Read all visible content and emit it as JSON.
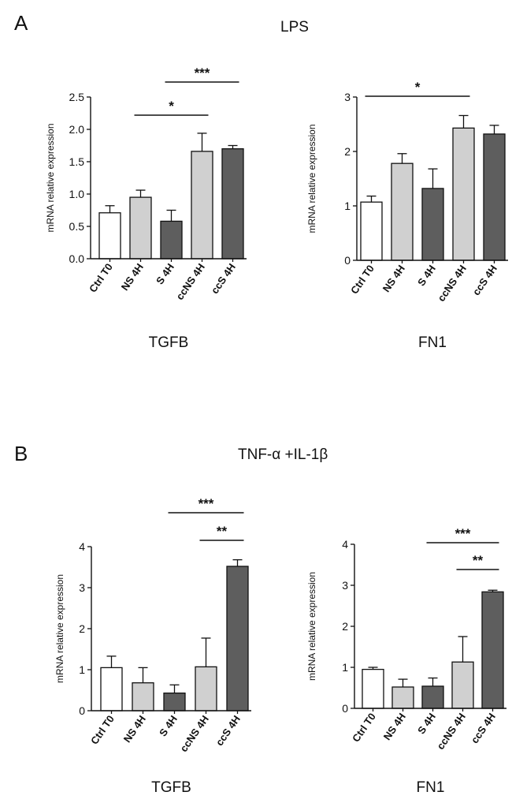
{
  "panels": [
    {
      "letter": "A",
      "title": "LPS"
    },
    {
      "letter": "B",
      "title": "TNF-α +IL-1β"
    }
  ],
  "colors": {
    "Ctrl T0": "#ffffff",
    "NS 4H": "#d0d0d0",
    "S 4H": "#5e5e5e",
    "ccNS 4H": "#d0d0d0",
    "ccS 4H": "#5e5e5e"
  },
  "chart_data": [
    {
      "type": "bar",
      "title": "TGFB",
      "ylabel": "mRNA relative expression",
      "categories": [
        "Ctrl T0",
        "NS 4H",
        "S 4H",
        "ccNS 4H",
        "ccS 4H"
      ],
      "values": [
        0.71,
        0.95,
        0.58,
        1.66,
        1.7
      ],
      "errors": [
        0.11,
        0.11,
        0.17,
        0.28,
        0.05
      ],
      "ylim": [
        0,
        2.5
      ],
      "yticks": [
        "0.0",
        "0.5",
        "1.0",
        "1.5",
        "2.0",
        "2.5"
      ],
      "significance": [
        {
          "from": "NS 4H",
          "to": "ccNS 4H",
          "label": "*"
        },
        {
          "from": "S 4H",
          "to": "ccS 4H",
          "label": "***"
        }
      ]
    },
    {
      "type": "bar",
      "title": "FN1",
      "ylabel": "mRNA relative expression",
      "categories": [
        "Ctrl T0",
        "NS 4H",
        "S 4H",
        "ccNS 4H",
        "ccS 4H"
      ],
      "values": [
        1.07,
        1.78,
        1.32,
        2.43,
        2.32
      ],
      "errors": [
        0.11,
        0.18,
        0.36,
        0.23,
        0.16
      ],
      "ylim": [
        0,
        3
      ],
      "yticks": [
        "0",
        "1",
        "2",
        "3"
      ],
      "significance": [
        {
          "from": "Ctrl T0",
          "to": "ccNS 4H",
          "label": "*"
        }
      ]
    },
    {
      "type": "bar",
      "title": "TGFB",
      "ylabel": "mRNA relative expression",
      "categories": [
        "Ctrl T0",
        "NS 4H",
        "S 4H",
        "ccNS 4H",
        "ccS 4H"
      ],
      "values": [
        1.05,
        0.68,
        0.43,
        1.07,
        3.52
      ],
      "errors": [
        0.28,
        0.37,
        0.2,
        0.7,
        0.16
      ],
      "ylim": [
        0,
        4
      ],
      "yticks": [
        "0",
        "1",
        "2",
        "3",
        "4"
      ],
      "significance": [
        {
          "from": "S 4H",
          "to": "ccS 4H",
          "label": "***"
        },
        {
          "from": "ccNS 4H",
          "to": "ccS 4H",
          "label": "**"
        }
      ]
    },
    {
      "type": "bar",
      "title": "FN1",
      "ylabel": "mRNA relative expression",
      "categories": [
        "Ctrl T0",
        "NS 4H",
        "S 4H",
        "ccNS 4H",
        "ccS 4H"
      ],
      "values": [
        0.95,
        0.52,
        0.54,
        1.13,
        2.84
      ],
      "errors": [
        0.05,
        0.19,
        0.2,
        0.62,
        0.04
      ],
      "ylim": [
        0,
        4
      ],
      "yticks": [
        "0",
        "1",
        "2",
        "3",
        "4"
      ],
      "significance": [
        {
          "from": "S 4H",
          "to": "ccS 4H",
          "label": "***"
        },
        {
          "from": "ccNS 4H",
          "to": "ccS 4H",
          "label": "**"
        }
      ]
    }
  ]
}
